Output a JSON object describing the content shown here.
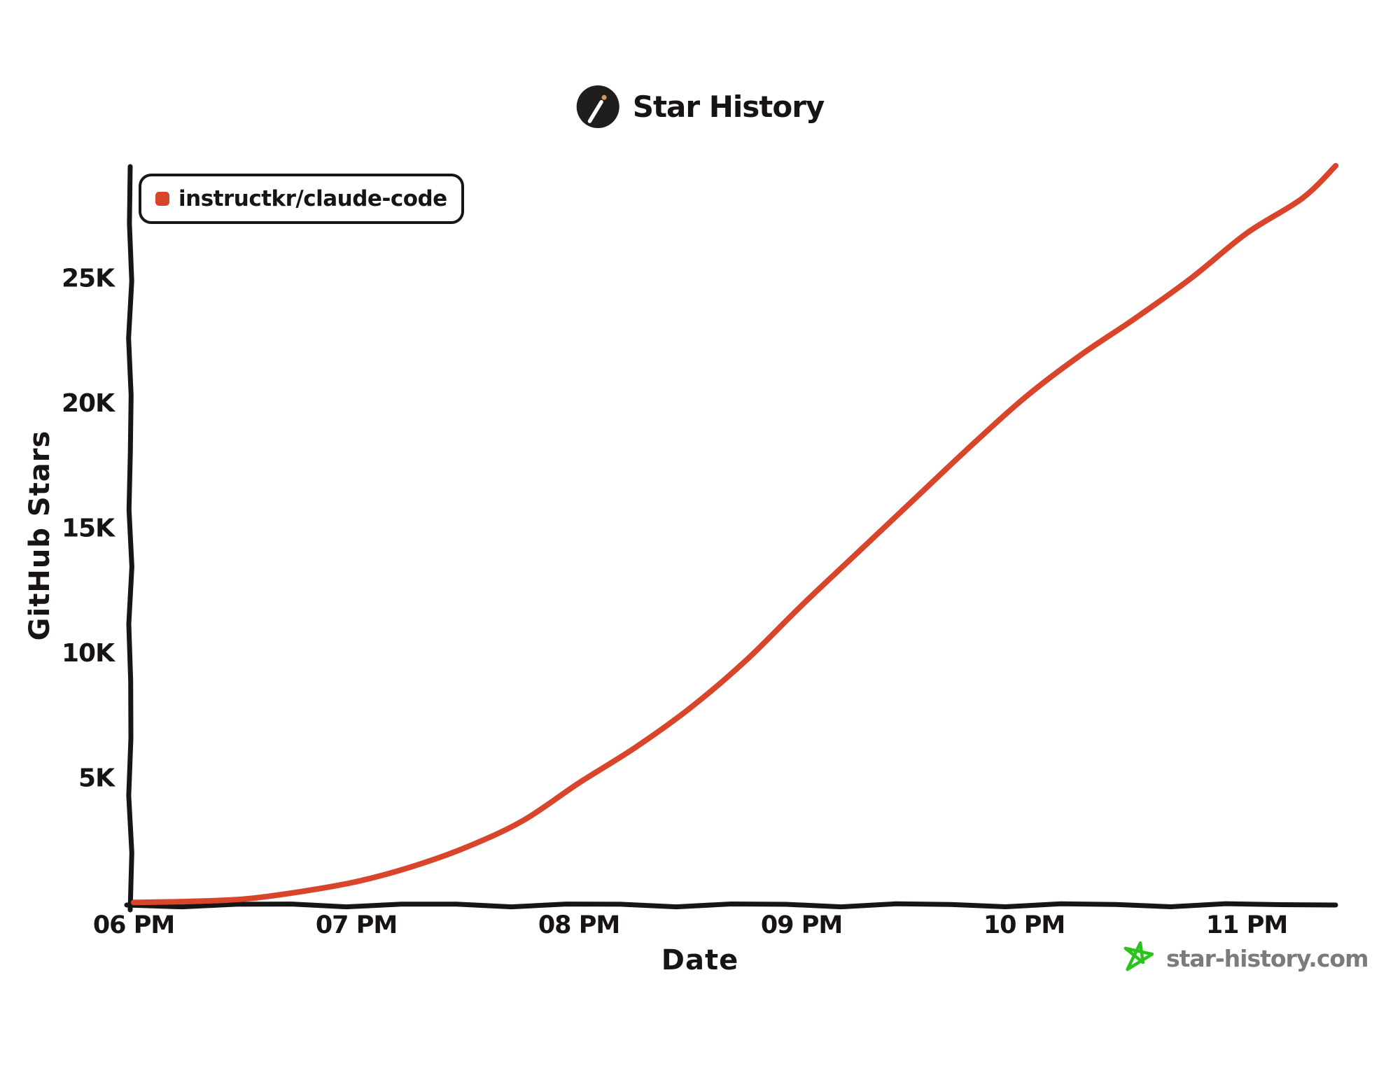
{
  "header": {
    "title": "Star History"
  },
  "legend": {
    "items": [
      {
        "label": "instructkr/claude-code",
        "color": "#d9452a"
      }
    ]
  },
  "chart_data": {
    "type": "line",
    "title": "Star History",
    "xlabel": "Date",
    "ylabel": "GitHub Stars",
    "grid": false,
    "legend_position": "top-left",
    "xlim_hours": [
      18,
      23.4
    ],
    "ylim": [
      0,
      29550
    ],
    "x_ticks": [
      {
        "label": "06 PM",
        "hour": 18
      },
      {
        "label": "07 PM",
        "hour": 19
      },
      {
        "label": "08 PM",
        "hour": 20
      },
      {
        "label": "09 PM",
        "hour": 21
      },
      {
        "label": "10 PM",
        "hour": 22
      },
      {
        "label": "11 PM",
        "hour": 23
      }
    ],
    "y_ticks": [
      {
        "label": "5K",
        "value": 5000
      },
      {
        "label": "10K",
        "value": 10000
      },
      {
        "label": "15K",
        "value": 15000
      },
      {
        "label": "20K",
        "value": 20000
      },
      {
        "label": "25K",
        "value": 25000
      }
    ],
    "series": [
      {
        "name": "instructkr/claude-code",
        "color": "#d9452a",
        "points": [
          [
            18.0,
            20
          ],
          [
            18.25,
            60
          ],
          [
            18.5,
            160
          ],
          [
            18.75,
            450
          ],
          [
            19.0,
            850
          ],
          [
            19.25,
            1450
          ],
          [
            19.5,
            2250
          ],
          [
            19.75,
            3300
          ],
          [
            20.0,
            4800
          ],
          [
            20.25,
            6200
          ],
          [
            20.5,
            7800
          ],
          [
            20.75,
            9700
          ],
          [
            21.0,
            11900
          ],
          [
            21.25,
            14000
          ],
          [
            21.5,
            16100
          ],
          [
            21.75,
            18200
          ],
          [
            22.0,
            20200
          ],
          [
            22.25,
            21900
          ],
          [
            22.5,
            23400
          ],
          [
            22.75,
            25000
          ],
          [
            23.0,
            26800
          ],
          [
            23.25,
            28200
          ],
          [
            23.4,
            29500
          ]
        ]
      }
    ]
  },
  "footer": {
    "site": "star-history.com",
    "star_color": "#2cc41c",
    "text_color": "#7b7b7b"
  },
  "style": {
    "axis_color": "#161616",
    "background": "#ffffff",
    "logo_bg": "#201d1d",
    "logo_wand": "#ffffff",
    "logo_tip": "#d09a5f"
  }
}
